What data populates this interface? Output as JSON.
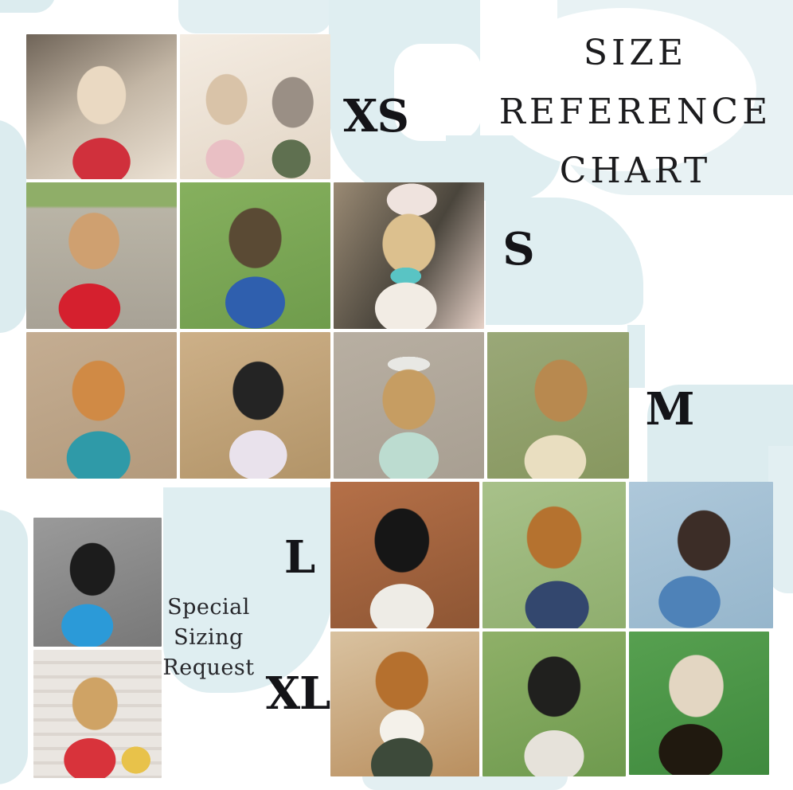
{
  "title": {
    "line1": "SIZE",
    "line2": "REFERENCE",
    "line3": "CHART"
  },
  "sizes": [
    {
      "label": "XS",
      "photos": [
        {
          "alt": "Cream cat wearing a red Wonder Woman bandana"
        },
        {
          "alt": "Two cats side by side wearing a pink bandana and a green bandana"
        }
      ]
    },
    {
      "label": "S",
      "photos": [
        {
          "alt": "Smiling tan and white dog wearing a red patterned bandana"
        },
        {
          "alt": "Airedale puppy on grass licking its nose, wearing a blue dinosaur bandana"
        },
        {
          "alt": "Cream long-haired dog with large floral bow headband, teal bead necklace and floral bandana"
        }
      ]
    },
    {
      "label": "M",
      "photos": [
        {
          "alt": "Smiling corgi with teal hair bow wearing a teal patterned bandana"
        },
        {
          "alt": "Black cattle dog in profile wearing a white floral bandana"
        },
        {
          "alt": "Goldendoodle wearing sunglasses and ear headband with a mint hedgehog bandana"
        },
        {
          "alt": "German shepherd with tongue out wearing a cream plaid bandana"
        }
      ]
    },
    {
      "label": "L",
      "photos": [
        {
          "alt": "Black shepherd with tongue out wearing a white patterned bandana on a wooden deck"
        },
        {
          "alt": "Golden retriever in profile wearing a navy gingham bandana with teal leash"
        },
        {
          "alt": "Chocolate brown dog on a light blue chair wearing a blue shark bandana"
        }
      ]
    },
    {
      "label": "XL",
      "photos": [
        {
          "alt": "Sable and white rough collie wearing a dark patterned bandana"
        },
        {
          "alt": "Black and white Newfoundland-type dog wearing a cow print bandana"
        },
        {
          "alt": "Tan and white pit bull on green turf wearing a black Batman logo bandana"
        }
      ]
    }
  ],
  "special": {
    "line1": "Special",
    "line2": "Sizing",
    "line3": "Request",
    "photos": [
      {
        "alt": "Long-haired black and tan dachshund wearing a blue Batman bandana next to a Batman plush"
      },
      {
        "alt": "Cream long-haired dachshund wearing a red Wonder Woman bandana next to a Wonder Woman plush"
      }
    ]
  },
  "colors": {
    "background": "#ffffff",
    "accent_light_blue": "#dfeef1",
    "accent_lighter_blue": "#e8f2f4",
    "text": "#1c1c1e"
  }
}
